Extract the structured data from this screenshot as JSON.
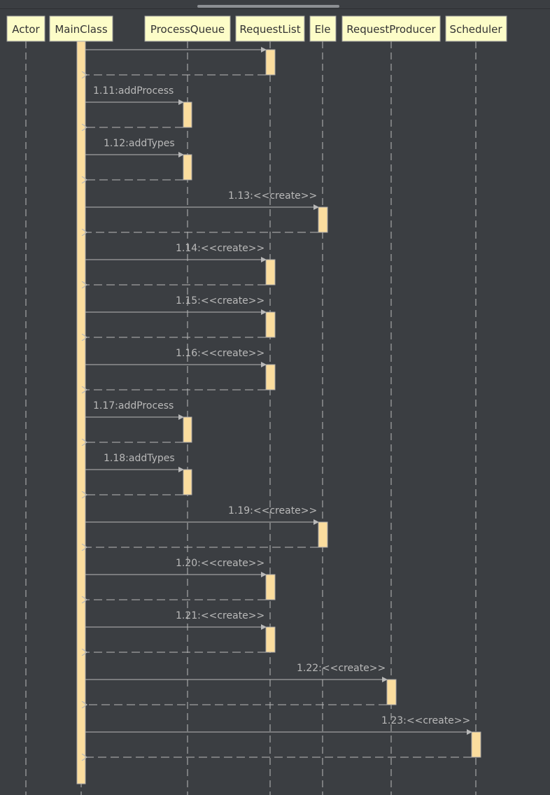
{
  "diagram": {
    "participants": [
      {
        "id": "actor",
        "name": "Actor"
      },
      {
        "id": "mainclass",
        "name": "MainClass"
      },
      {
        "id": "processqueue",
        "name": "ProcessQueue"
      },
      {
        "id": "requestlist",
        "name": "RequestList"
      },
      {
        "id": "ele",
        "name": "Ele"
      },
      {
        "id": "requestproducer",
        "name": "RequestProducer"
      },
      {
        "id": "scheduler",
        "name": "Scheduler"
      }
    ],
    "messages": [
      {
        "label": "",
        "from": "mainclass",
        "to": "requestlist"
      },
      {
        "label": "1.11:addProcess",
        "from": "mainclass",
        "to": "processqueue"
      },
      {
        "label": "1.12:addTypes",
        "from": "mainclass",
        "to": "processqueue"
      },
      {
        "label": "1.13:<<create>>",
        "from": "mainclass",
        "to": "ele"
      },
      {
        "label": "1.14:<<create>>",
        "from": "mainclass",
        "to": "requestlist"
      },
      {
        "label": "1.15:<<create>>",
        "from": "mainclass",
        "to": "requestlist"
      },
      {
        "label": "1.16:<<create>>",
        "from": "mainclass",
        "to": "requestlist"
      },
      {
        "label": "1.17:addProcess",
        "from": "mainclass",
        "to": "processqueue"
      },
      {
        "label": "1.18:addTypes",
        "from": "mainclass",
        "to": "processqueue"
      },
      {
        "label": "1.19:<<create>>",
        "from": "mainclass",
        "to": "ele"
      },
      {
        "label": "1.20:<<create>>",
        "from": "mainclass",
        "to": "requestlist"
      },
      {
        "label": "1.21:<<create>>",
        "from": "mainclass",
        "to": "requestlist"
      },
      {
        "label": "1.22:<<create>>",
        "from": "mainclass",
        "to": "requestproducer"
      },
      {
        "label": "1.23:<<create>>",
        "from": "mainclass",
        "to": "scheduler"
      }
    ]
  }
}
